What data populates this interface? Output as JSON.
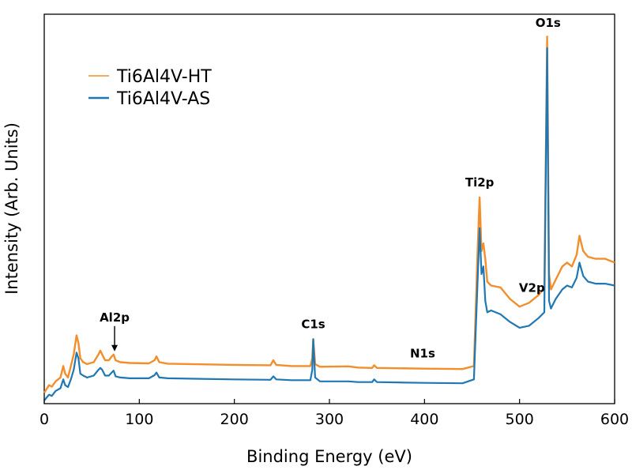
{
  "chart_data": {
    "type": "line",
    "xlabel": "Binding Energy (eV)",
    "ylabel": "Intensity (Arb. Units)",
    "xlim": [
      0,
      600
    ],
    "xticks": [
      0,
      100,
      200,
      300,
      400,
      500,
      600
    ],
    "ylim": [
      0,
      100
    ],
    "grid": false,
    "legend_position": "top-left",
    "series": [
      {
        "name": "Ti6Al4V-HT",
        "color": "#f28e2b",
        "x": [
          0,
          5,
          8,
          12,
          17,
          20,
          22,
          25,
          28,
          31,
          34,
          36,
          38,
          41,
          45,
          52,
          57,
          59,
          61,
          64,
          68,
          71,
          73,
          75,
          80,
          90,
          110,
          116,
          118,
          121,
          130,
          200,
          238,
          241,
          244,
          260,
          280,
          282,
          283,
          285,
          290,
          320,
          330,
          345,
          347,
          350,
          400,
          440,
          452,
          456,
          458,
          460,
          462,
          464,
          466,
          470,
          480,
          490,
          500,
          510,
          520,
          526,
          529,
          531,
          533,
          538,
          545,
          550,
          555,
          560,
          563,
          567,
          572,
          580,
          590,
          600
        ],
        "y": [
          2,
          4,
          3.6,
          5,
          6,
          9,
          7,
          6,
          9,
          12,
          17,
          15,
          11,
          10,
          9.5,
          10,
          12,
          13,
          12,
          10.5,
          10.5,
          11.5,
          12,
          10.5,
          10,
          9.8,
          9.7,
          10.5,
          11.5,
          10,
          9.6,
          9.3,
          9.2,
          10.5,
          9.3,
          9,
          9,
          11,
          16,
          9.5,
          8.8,
          8.9,
          8.6,
          8.5,
          9.2,
          8.5,
          8.3,
          8.2,
          9,
          40,
          53,
          39,
          41,
          37,
          31,
          30,
          29.5,
          26.5,
          24.5,
          25.5,
          27.5,
          29.5,
          95,
          33,
          29,
          31.5,
          35,
          36,
          35,
          38,
          43,
          39,
          37.5,
          37,
          37,
          36
        ]
      },
      {
        "name": "Ti6Al4V-AS",
        "color": "#1f77b4",
        "x": [
          0,
          5,
          8,
          12,
          17,
          20,
          22,
          25,
          28,
          31,
          34,
          36,
          38,
          41,
          45,
          52,
          57,
          59,
          61,
          64,
          68,
          71,
          73,
          75,
          80,
          90,
          110,
          116,
          118,
          121,
          130,
          200,
          238,
          241,
          244,
          260,
          280,
          282,
          283,
          285,
          290,
          320,
          330,
          345,
          347,
          350,
          400,
          440,
          452,
          456,
          458,
          460,
          462,
          464,
          466,
          470,
          480,
          490,
          500,
          510,
          520,
          526,
          529,
          531,
          533,
          538,
          545,
          550,
          555,
          560,
          563,
          567,
          572,
          580,
          590,
          600
        ],
        "y": [
          0,
          1.5,
          1.2,
          2.5,
          3.2,
          5.5,
          4,
          3.5,
          5.5,
          8,
          12.5,
          11,
          7,
          6.5,
          6,
          6.5,
          8,
          8.5,
          8,
          6.5,
          6.5,
          7.3,
          7.8,
          6.3,
          6,
          5.8,
          5.8,
          6.6,
          7.3,
          6,
          5.8,
          5.5,
          5.4,
          6.3,
          5.5,
          5.3,
          5.3,
          8,
          16,
          6,
          5,
          5,
          4.8,
          4.8,
          5.5,
          4.8,
          4.6,
          4.5,
          5.5,
          32,
          45,
          33,
          35,
          26,
          23,
          23.5,
          22.5,
          20.5,
          19,
          19.5,
          21.5,
          23,
          92,
          26,
          24,
          26.5,
          29,
          30,
          29.5,
          32,
          36,
          32.5,
          31,
          30.5,
          30.5,
          30
        ]
      }
    ],
    "annotations": [
      {
        "text": "O1s",
        "x": 530,
        "arrow": false
      },
      {
        "text": "Ti2p",
        "x": 458,
        "arrow": false
      },
      {
        "text": "V2p",
        "x": 513,
        "arrow": false
      },
      {
        "text": "N1s",
        "x": 398,
        "arrow": false
      },
      {
        "text": "C1s",
        "x": 283,
        "arrow": false
      },
      {
        "text": "Al2p",
        "x": 74,
        "arrow": true
      }
    ]
  }
}
